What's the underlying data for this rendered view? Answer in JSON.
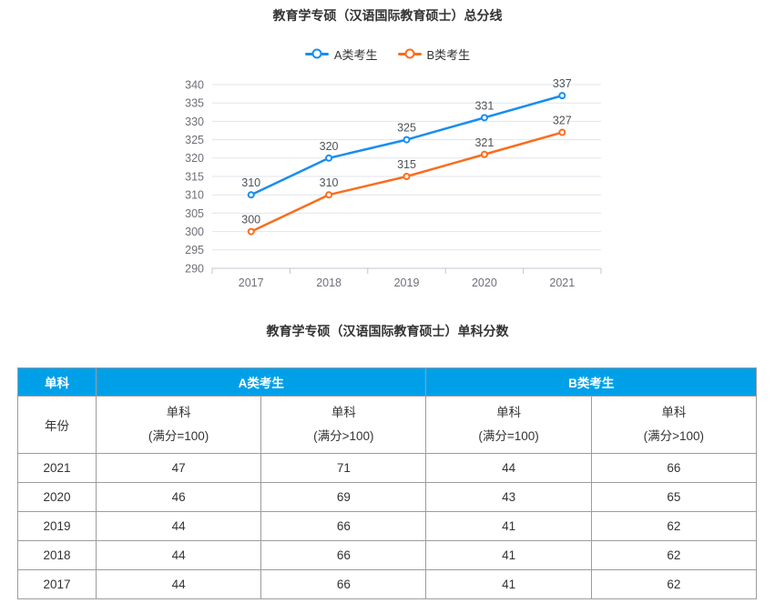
{
  "chart": {
    "title": "教育学专硕（汉语国际教育硕士）总分线"
  },
  "chart_data": {
    "type": "line",
    "title": "教育学专硕（汉语国际教育硕士）总分线",
    "categories": [
      "2017",
      "2018",
      "2019",
      "2020",
      "2021"
    ],
    "series": [
      {
        "name": "A类考生",
        "color": "#188df0",
        "values": [
          310,
          320,
          325,
          331,
          337
        ]
      },
      {
        "name": "B类考生",
        "color": "#fb6c1c",
        "values": [
          300,
          310,
          315,
          321,
          327
        ]
      }
    ],
    "ylim": [
      290,
      340
    ],
    "ytick_step": 5,
    "grid": true,
    "legend_position": "top",
    "xlabel": "",
    "ylabel": "",
    "data_labels": true
  },
  "table": {
    "title": "教育学专硕（汉语国际教育硕士）单科分数",
    "header_bg": "#00a0e9",
    "header": {
      "col1": "单科",
      "groupA": "A类考生",
      "groupB": "B类考生",
      "sub_col1": "年份"
    },
    "subheaders": [
      {
        "line1": "单科",
        "line2": "(满分=100)"
      },
      {
        "line1": "单科",
        "line2": "(满分>100)"
      },
      {
        "line1": "单科",
        "line2": "(满分=100)"
      },
      {
        "line1": "单科",
        "line2": "(满分>100)"
      }
    ],
    "rows": [
      [
        "2021",
        "47",
        "71",
        "44",
        "66"
      ],
      [
        "2020",
        "46",
        "69",
        "43",
        "65"
      ],
      [
        "2019",
        "44",
        "66",
        "41",
        "62"
      ],
      [
        "2018",
        "44",
        "66",
        "41",
        "62"
      ],
      [
        "2017",
        "44",
        "66",
        "41",
        "62"
      ]
    ]
  },
  "colors": {
    "grid_line": "#e2e5ec",
    "axis_line": "#c0c4cc",
    "tick_label": "#6e7079",
    "data_label": "#4f5356",
    "table_border": "#9c9c9c",
    "text": "#333333"
  }
}
